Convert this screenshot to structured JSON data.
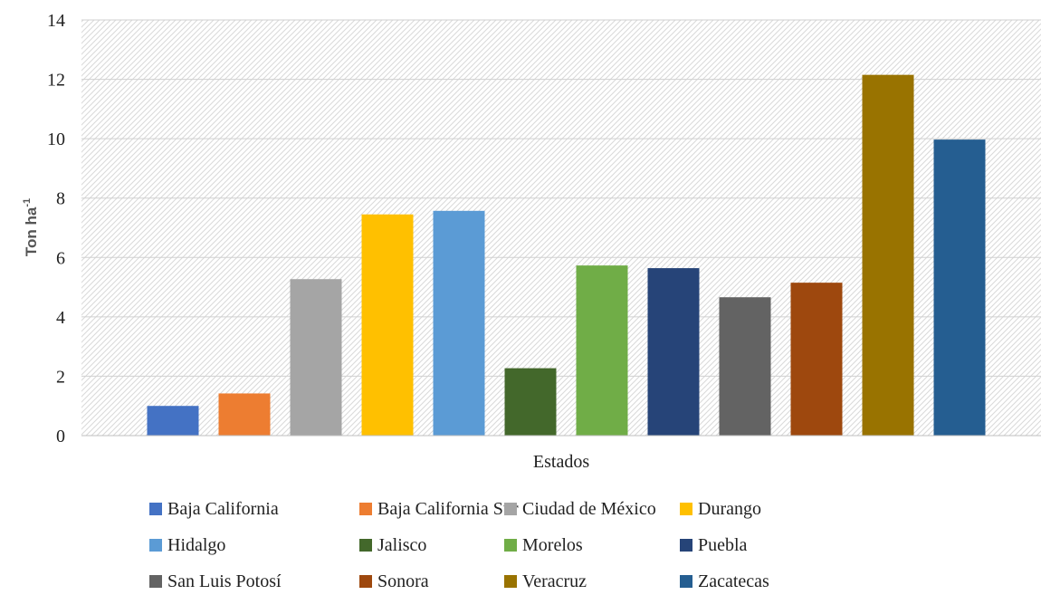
{
  "chart_data": {
    "type": "bar",
    "xlabel": "Estados",
    "ylabel_main": "Ton ha",
    "ylabel_sup": "-1",
    "ylim": [
      0,
      14
    ],
    "yticks": [
      0,
      2,
      4,
      6,
      8,
      10,
      12,
      14
    ],
    "grid": true,
    "legend_position": "bottom",
    "categories": [
      "Baja California",
      "Baja California Sur",
      "Ciudad de México",
      "Durango",
      "Hidalgo",
      "Jalisco",
      "Morelos",
      "Puebla",
      "San Luis Potosí",
      "Sonora",
      "Veracruz",
      "Zacatecas"
    ],
    "values": [
      1.0,
      1.42,
      5.27,
      7.45,
      7.57,
      2.27,
      5.73,
      5.64,
      4.66,
      5.15,
      12.15,
      9.97
    ],
    "colors": [
      "#4472c4",
      "#ed7d31",
      "#a5a5a5",
      "#ffc000",
      "#5b9bd5",
      "#43682b",
      "#70ad47",
      "#264478",
      "#636363",
      "#9e480e",
      "#997300",
      "#255e91"
    ]
  }
}
